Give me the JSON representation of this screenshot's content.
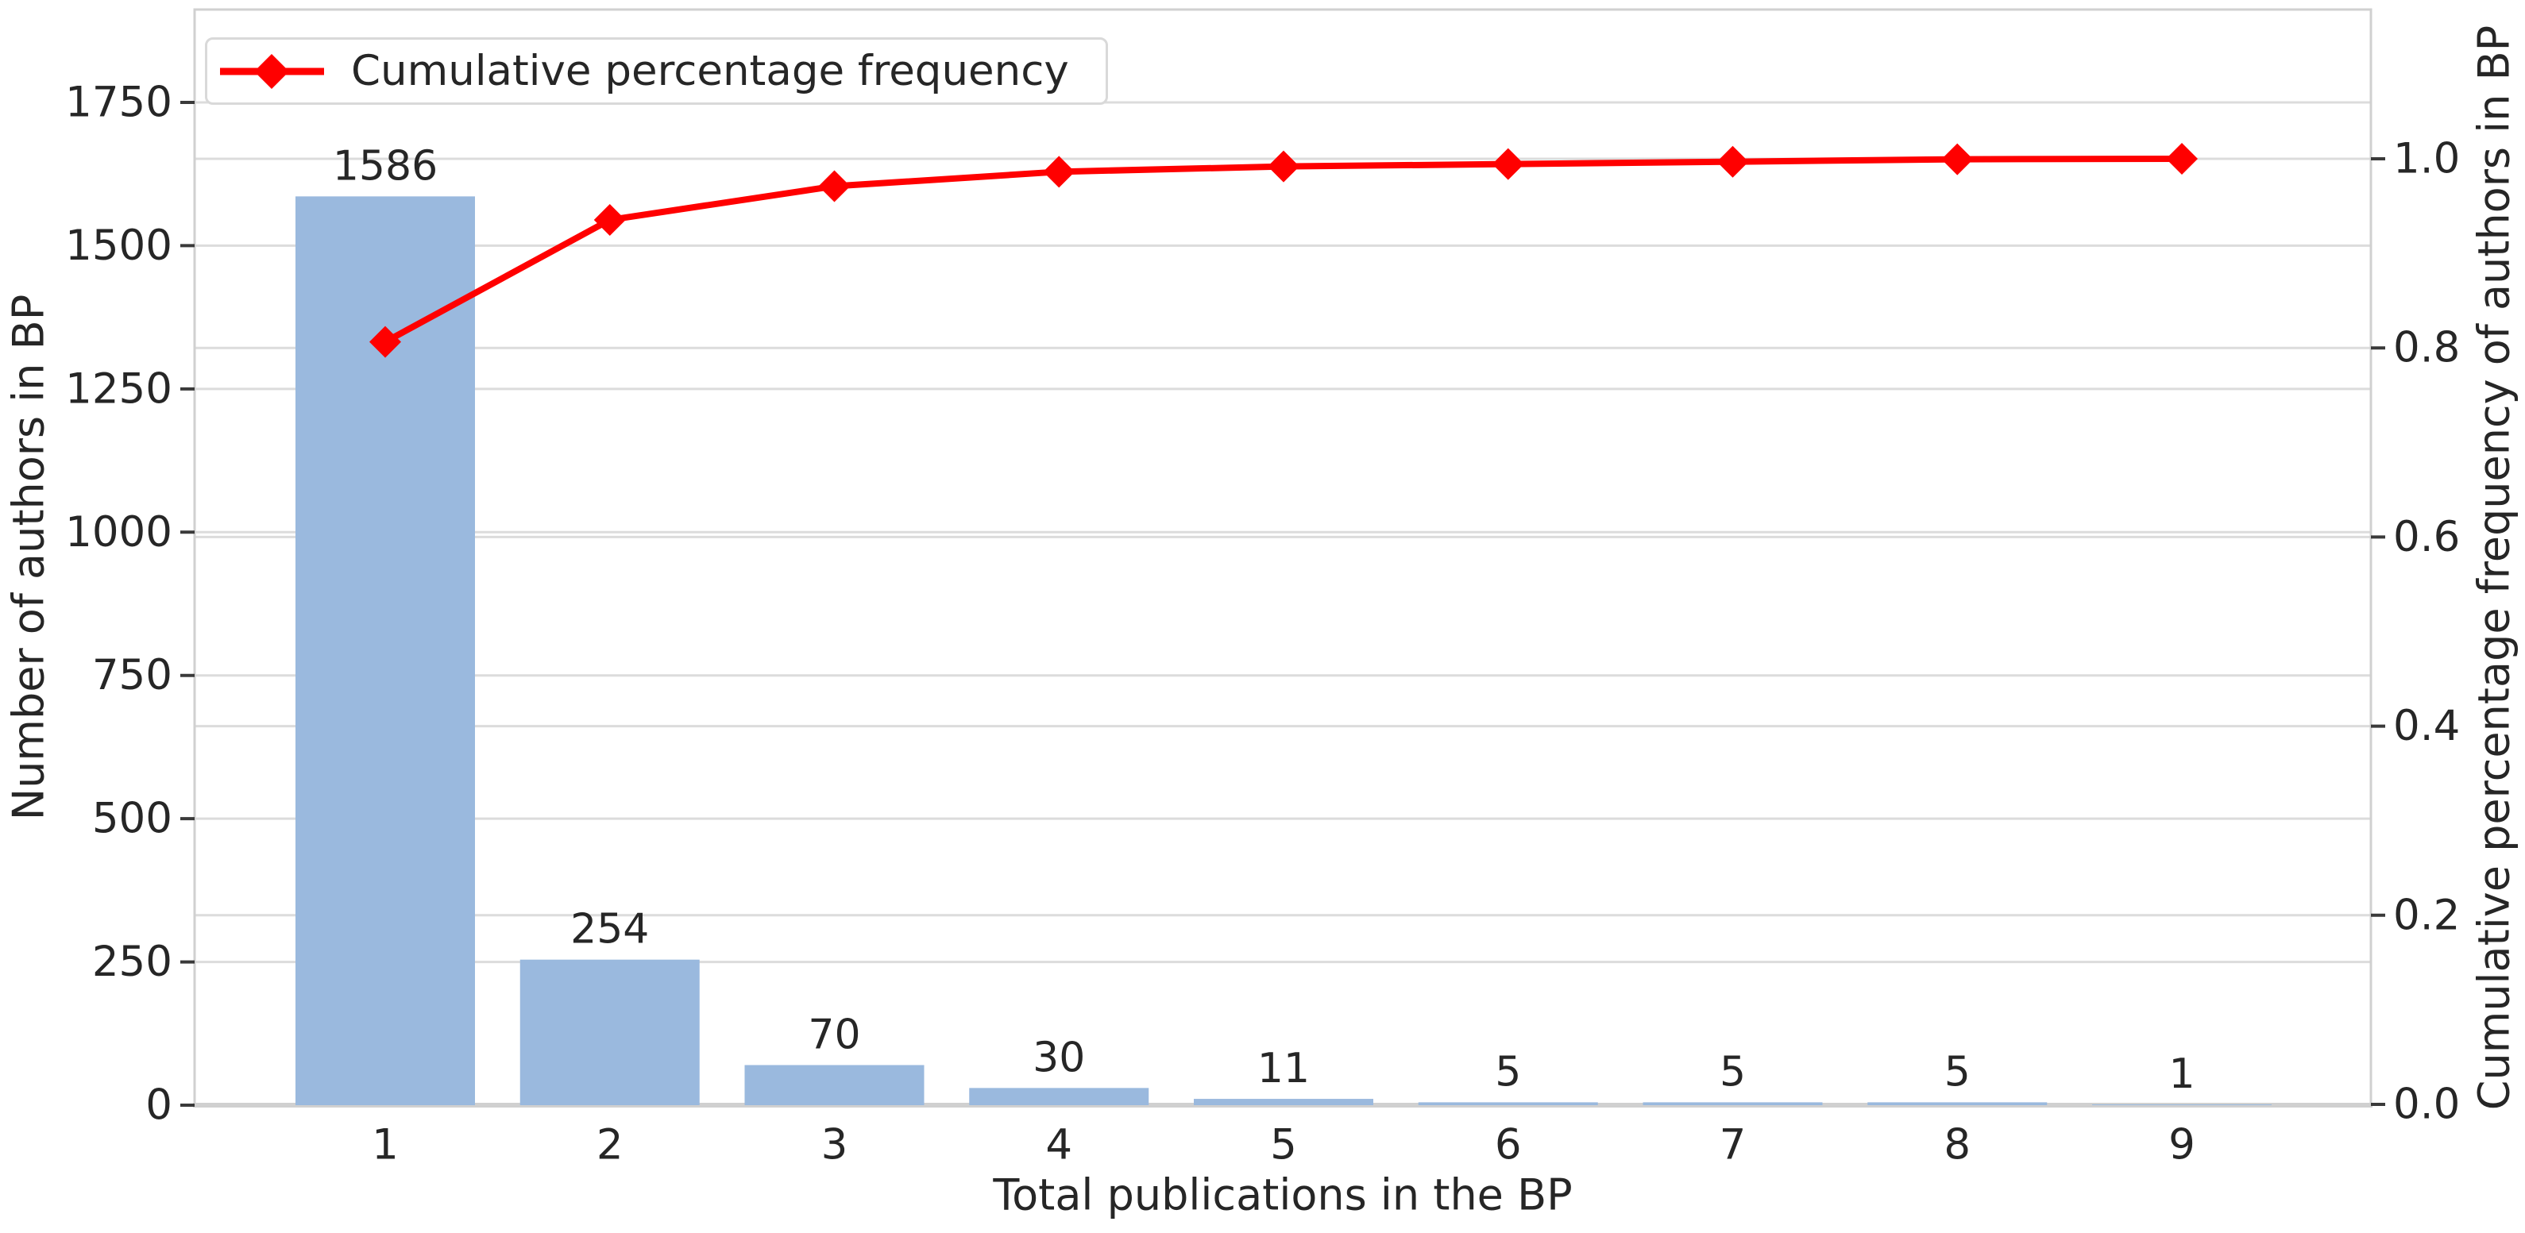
{
  "chart_data": {
    "type": "bar",
    "subtype": "pareto-with-cumulative-line",
    "title": "",
    "categories": [
      "1",
      "2",
      "3",
      "4",
      "5",
      "6",
      "7",
      "8",
      "9"
    ],
    "series": [
      {
        "name": "Number of authors",
        "type": "bar",
        "values": [
          1586,
          254,
          70,
          30,
          11,
          5,
          5,
          5,
          1
        ]
      },
      {
        "name": "Cumulative percentage frequency",
        "type": "line",
        "values": [
          0.8064,
          0.9354,
          0.971,
          0.9863,
          0.9919,
          0.9944,
          0.9969,
          0.9995,
          1.0
        ]
      }
    ],
    "bar_value_labels": [
      "1586",
      "254",
      "70",
      "30",
      "11",
      "5",
      "5",
      "5",
      "1"
    ],
    "xlabel": "Total publications in the BP",
    "ylabel_left": "Number of authors in BP",
    "ylabel_right": "Cumulative percentage frequency of authors in BP",
    "yticks_left": {
      "values": [
        0,
        250,
        500,
        750,
        1000,
        1250,
        1500,
        1750
      ],
      "labels": [
        "0",
        "250",
        "500",
        "750",
        "1000",
        "1250",
        "1500",
        "1750"
      ]
    },
    "yticks_right": {
      "values": [
        0.0,
        0.2,
        0.4,
        0.6,
        0.8,
        1.0
      ],
      "labels": [
        "0.0",
        "0.2",
        "0.4",
        "0.6",
        "0.8",
        "1.0"
      ]
    },
    "ylim_left": [
      0,
      1912
    ],
    "ylim_right": [
      0,
      1.16
    ],
    "grid": true,
    "legend_position": "upper left",
    "legend": {
      "label": "Cumulative percentage frequency",
      "marker": "diamond-line-icon"
    },
    "colors": {
      "bar_fill": "#9ab9de",
      "line": "#ff0000",
      "grid": "#dcdcdc",
      "spine": "#d0d0d0",
      "tick_mark": "#3a3a3a",
      "text": "#262626"
    }
  }
}
